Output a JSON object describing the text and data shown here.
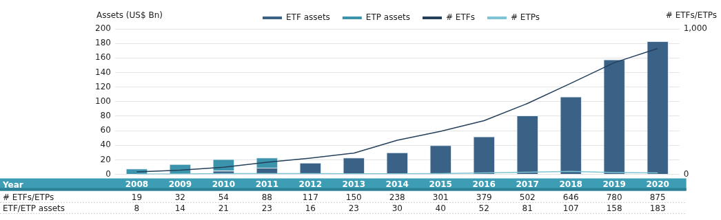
{
  "chart_data": {
    "type": "bar",
    "ylabel": "Assets (US$ Bn)",
    "y2label": "# ETFs/ETPs",
    "categories": [
      "2008",
      "2009",
      "2010",
      "2011",
      "2012",
      "2013",
      "2014",
      "2015",
      "2016",
      "2017",
      "2018",
      "2019",
      "2020"
    ],
    "stacked": true,
    "series": [
      {
        "name": "ETF assets",
        "color": "#3a6186",
        "values": [
          null,
          null,
          5,
          9,
          16,
          23,
          30,
          40,
          52,
          81,
          107,
          158,
          183
        ]
      },
      {
        "name": "ETP assets",
        "color": "#3b93ac",
        "values": [
          8,
          14,
          16,
          14,
          0,
          0,
          0,
          0,
          0,
          0,
          0,
          0,
          0
        ]
      },
      {
        "name": "# ETFs",
        "type": "line",
        "axis": "y2",
        "color": "#233f5a",
        "values": [
          17,
          29,
          49,
          83,
          112,
          146,
          234,
          296,
          369,
          487,
          626,
          768,
          865
        ]
      },
      {
        "name": "# ETPs",
        "type": "line",
        "axis": "y2",
        "color": "#7ec4d4",
        "values": [
          2,
          3,
          5,
          5,
          5,
          4,
          4,
          5,
          10,
          15,
          20,
          12,
          10
        ]
      }
    ],
    "annotations": [
      "Year",
      "# ETFs/ETPs",
      "ETF/ETP assets",
      "19",
      "32",
      "54",
      "88",
      "117",
      "150",
      "238",
      "301",
      "379",
      "502",
      "646",
      "780",
      "875",
      "8",
      "14",
      "21",
      "23",
      "16",
      "23",
      "30",
      "40",
      "52",
      "81",
      "107",
      "158",
      "183"
    ],
    "ylim": [
      0,
      200
    ],
    "yticks": [
      0,
      20,
      40,
      60,
      80,
      100,
      120,
      140,
      160,
      180,
      200
    ],
    "y2lim": [
      0,
      1000
    ],
    "y2ticks": [
      0,
      {
        "value": 1000,
        "label": "1,000"
      }
    ],
    "grid": "y",
    "legend": "top",
    "marker": "none",
    "line_style": "solid"
  }
}
